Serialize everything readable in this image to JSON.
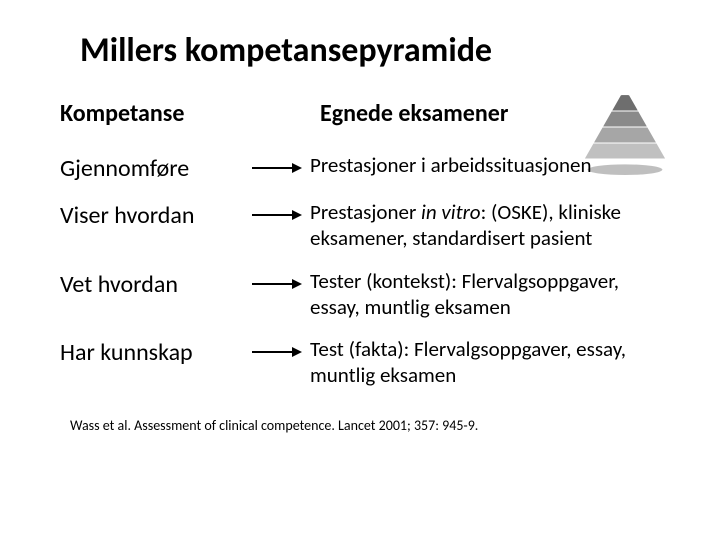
{
  "title": "Millers kompetansepyramide",
  "headers": {
    "left": "Kompetanse",
    "right": "Egnede eksamener"
  },
  "rows": [
    {
      "label": "Gjennomføre",
      "desc": "Prestasjoner i arbeidssituasjonen"
    },
    {
      "label": "Viser hvordan",
      "desc": "Prestasjoner <span class=\"italic\">in vitro</span>: (OSKE), kliniske eksamener, standardisert pasient"
    },
    {
      "label": "Vet hvordan",
      "desc": "Tester (kontekst): Flervalgsoppgaver, essay, muntlig eksamen"
    },
    {
      "label": "Har kunnskap",
      "desc": "Test (fakta): Flervalgsoppgaver, essay, muntlig eksamen"
    }
  ],
  "citation": "Wass et al. Assessment of clinical competence. Lancet 2001; 357: 945-9.",
  "arrow": {
    "stroke": "#000000",
    "stroke_width": 2
  },
  "pyramid": {
    "levels": 4,
    "colors": [
      "#6e6e6e",
      "#8a8a8a",
      "#a6a6a6",
      "#c0c0c0"
    ],
    "shadow_opacity": 0.25
  },
  "fonts": {
    "title_size": 34,
    "header_size": 24,
    "label_size": 24,
    "desc_size": 21,
    "citation_size": 14
  },
  "background": "#ffffff"
}
